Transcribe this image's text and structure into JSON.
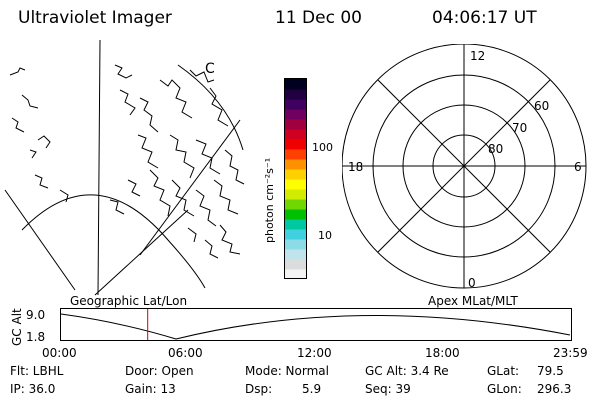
{
  "header": {
    "instrument": "Ultraviolet Imager",
    "date": "11 Dec 00",
    "time": "04:06:17 UT"
  },
  "colorbar": {
    "unit": "photon cm⁻²s⁻¹",
    "ticks": [
      "100",
      "10"
    ],
    "colors": [
      "#f4f4f4",
      "#dcdcdc",
      "#c0e4ec",
      "#8cdce8",
      "#40d0e0",
      "#00c8a0",
      "#00c000",
      "#70d800",
      "#d0ec00",
      "#ffff00",
      "#ffd000",
      "#ff9000",
      "#ff4000",
      "#f00000",
      "#d00020",
      "#a00040",
      "#700060",
      "#400060",
      "#200040",
      "#000020"
    ]
  },
  "polar_plot": {
    "mlt_labels": {
      "top": "12",
      "right": "6",
      "bottom": "0",
      "left": "18"
    },
    "lat_labels": [
      "60",
      "70",
      "80"
    ]
  },
  "geo_map": {
    "label_c": "C"
  },
  "orbit_panel": {
    "left_title": "Geographic Lat/Lon",
    "right_title": "Apex MLat/MLT",
    "y_axis_label": "GC Alt",
    "y_ticks": [
      "9.0",
      "1.8"
    ],
    "x_ticks": [
      "00:00",
      "06:00",
      "12:00",
      "18:00",
      "23:59"
    ],
    "current_time_fraction": 0.17
  },
  "footer": {
    "filter": "Flt: LBHL",
    "ip": "IP: 36.0",
    "door": "Door: Open",
    "gain": "Gain: 13",
    "mode": "Mode: Normal",
    "dsp": "Dsp:",
    "dsp_val": "5.9",
    "gc_alt": "GC Alt: 3.4 Re",
    "seq": "Seq: 39",
    "glat_label": "GLat:",
    "glat_val": "79.5",
    "glon_label": "GLon:",
    "glon_val": "296.3"
  }
}
